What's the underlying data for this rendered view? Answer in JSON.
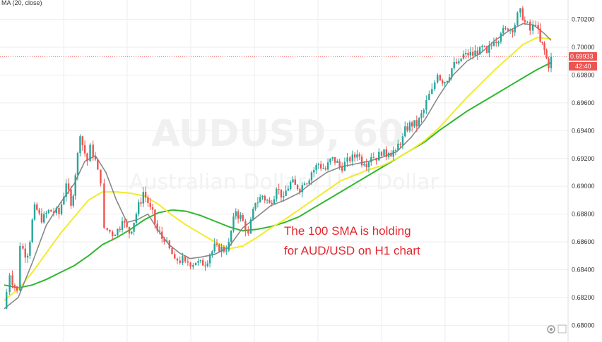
{
  "indicator_label": "MA (20, close)",
  "watermark": {
    "title": "AUDUSD, 60",
    "subtitle": "Australian Dollar / U.S. Dollar"
  },
  "annotation": {
    "line1": "The 100 SMA is holding",
    "line2": "for AUD/USD on H1 chart"
  },
  "price_badges": {
    "last_price": "0.69933",
    "countdown": "42:40"
  },
  "colors": {
    "up": "#26a69a",
    "down": "#ef5350",
    "ma20": "#888888",
    "ma50": "#f2eb2a",
    "ma100": "#2eb82e",
    "annotation": "#e3262d",
    "grid": "#eeeeee",
    "price_line": "#ef5350"
  },
  "chart_data": {
    "type": "candlestick",
    "y_ticks": [
      "0.70200",
      "0.70000",
      "0.69800",
      "0.69600",
      "0.69400",
      "0.69200",
      "0.69000",
      "0.68800",
      "0.68600",
      "0.68400",
      "0.68200",
      "0.68000"
    ],
    "ylim": [
      0.6788,
      0.7034
    ],
    "grid": true,
    "series": [
      {
        "name": "MA (20, close)",
        "type": "line",
        "points": [
          [
            0,
            0.6812
          ],
          [
            20,
            0.682
          ],
          [
            40,
            0.6845
          ],
          [
            60,
            0.6872
          ],
          [
            80,
            0.6888
          ],
          [
            100,
            0.6902
          ],
          [
            115,
            0.6918
          ],
          [
            130,
            0.6922
          ],
          [
            145,
            0.691
          ],
          [
            160,
            0.689
          ],
          [
            175,
            0.6874
          ],
          [
            190,
            0.6876
          ],
          [
            205,
            0.688
          ],
          [
            220,
            0.6868
          ],
          [
            235,
            0.6858
          ],
          [
            250,
            0.6852
          ],
          [
            265,
            0.6848
          ],
          [
            280,
            0.6849
          ],
          [
            300,
            0.6851
          ],
          [
            320,
            0.6856
          ],
          [
            340,
            0.687
          ],
          [
            360,
            0.6878
          ],
          [
            380,
            0.6886
          ],
          [
            400,
            0.689
          ],
          [
            420,
            0.6895
          ],
          [
            440,
            0.6903
          ],
          [
            460,
            0.691
          ],
          [
            480,
            0.6914
          ],
          [
            500,
            0.6916
          ],
          [
            520,
            0.6918
          ],
          [
            540,
            0.6921
          ],
          [
            560,
            0.6925
          ],
          [
            580,
            0.6935
          ],
          [
            600,
            0.6948
          ],
          [
            620,
            0.6965
          ],
          [
            640,
            0.698
          ],
          [
            660,
            0.699
          ],
          [
            680,
            0.6996
          ],
          [
            700,
            0.7005
          ],
          [
            720,
            0.7012
          ],
          [
            740,
            0.7017
          ],
          [
            755,
            0.7016
          ],
          [
            770,
            0.701
          ],
          [
            780,
            0.7005
          ]
        ]
      },
      {
        "name": "",
        "type": "line",
        "points": [
          [
            0,
            0.6818
          ],
          [
            20,
            0.6826
          ],
          [
            40,
            0.6838
          ],
          [
            60,
            0.6852
          ],
          [
            80,
            0.6866
          ],
          [
            100,
            0.6878
          ],
          [
            120,
            0.689
          ],
          [
            140,
            0.6896
          ],
          [
            160,
            0.6896
          ],
          [
            180,
            0.6895
          ],
          [
            200,
            0.6893
          ],
          [
            220,
            0.6887
          ],
          [
            240,
            0.6879
          ],
          [
            260,
            0.6872
          ],
          [
            280,
            0.6866
          ],
          [
            300,
            0.686
          ],
          [
            320,
            0.6855
          ],
          [
            340,
            0.6857
          ],
          [
            360,
            0.6863
          ],
          [
            380,
            0.687
          ],
          [
            400,
            0.6876
          ],
          [
            420,
            0.6883
          ],
          [
            440,
            0.689
          ],
          [
            460,
            0.6897
          ],
          [
            480,
            0.6904
          ],
          [
            500,
            0.6908
          ],
          [
            520,
            0.6912
          ],
          [
            540,
            0.6915
          ],
          [
            560,
            0.692
          ],
          [
            580,
            0.6926
          ],
          [
            600,
            0.6933
          ],
          [
            620,
            0.6942
          ],
          [
            640,
            0.6953
          ],
          [
            660,
            0.6964
          ],
          [
            680,
            0.6974
          ],
          [
            700,
            0.6984
          ],
          [
            720,
            0.6993
          ],
          [
            740,
            0.7002
          ],
          [
            760,
            0.7007
          ],
          [
            780,
            0.7006
          ]
        ]
      },
      {
        "name": "",
        "type": "line",
        "points": [
          [
            0,
            0.6829
          ],
          [
            20,
            0.6827
          ],
          [
            40,
            0.6829
          ],
          [
            60,
            0.6833
          ],
          [
            80,
            0.6838
          ],
          [
            100,
            0.6843
          ],
          [
            120,
            0.685
          ],
          [
            140,
            0.6858
          ],
          [
            160,
            0.6863
          ],
          [
            180,
            0.6869
          ],
          [
            200,
            0.6876
          ],
          [
            220,
            0.6881
          ],
          [
            240,
            0.6883
          ],
          [
            260,
            0.6882
          ],
          [
            280,
            0.6879
          ],
          [
            300,
            0.6875
          ],
          [
            320,
            0.6871
          ],
          [
            340,
            0.6868
          ],
          [
            360,
            0.6869
          ],
          [
            380,
            0.6871
          ],
          [
            400,
            0.6874
          ],
          [
            420,
            0.6878
          ],
          [
            440,
            0.6884
          ],
          [
            460,
            0.689
          ],
          [
            480,
            0.6896
          ],
          [
            500,
            0.6902
          ],
          [
            520,
            0.6908
          ],
          [
            540,
            0.6914
          ],
          [
            560,
            0.692
          ],
          [
            580,
            0.6926
          ],
          [
            600,
            0.6932
          ],
          [
            620,
            0.694
          ],
          [
            640,
            0.6947
          ],
          [
            660,
            0.6954
          ],
          [
            680,
            0.696
          ],
          [
            700,
            0.6966
          ],
          [
            720,
            0.6972
          ],
          [
            740,
            0.6978
          ],
          [
            760,
            0.6984
          ],
          [
            780,
            0.6989
          ]
        ]
      },
      {
        "name": "",
        "type": "candles",
        "segments": "1,0.6812,0.6836;10,0.6836,0.6825;20,0.6825,0.6857;25,0.6857,0.6850;35,0.6850,0.6887;45,0.6887,0.6874;55,0.6874,0.6883;65,0.6883,0.6880;80,0.6880,0.6902;90,0.6902,0.6886;97,0.6886,0.6908;103,0.6908,0.6936;110,0.6936,0.6918;120,0.6918,0.6930;125,0.6930,0.6912;135,0.6912,0.6902;140,0.6902,0.6870;145,0.6870,0.6865;160,0.6865,0.6875;170,0.6875,0.6866;180,0.6866,0.6880;190,0.6880,0.6896;200,0.6896,0.6885;210,0.6885,0.6868;220,0.6868,0.6860;230,0.6860,0.6848;245,0.6848,0.6846;260,0.6846,0.6845;275,0.6845,0.6843;285,0.6843,0.6851;295,0.6851,0.6858;305,0.6858,0.6853;315,0.6853,0.6860;322,0.6860,0.6882;332,0.6882,0.6875;342,0.6875,0.6866;350,0.6866,0.6888;360,0.6888,0.6893;370,0.6893,0.6888;380,0.6888,0.6898;390,0.6898,0.6893;400,0.6893,0.6903;410,0.6903,0.6898;420,0.6898,0.6902;430,0.6902,0.6910;440,0.6910,0.6916;450,0.6916,0.6912;460,0.6912,0.6921;470,0.6921,0.6914;480,0.6914,0.6918;495,0.6918,0.6923;505,0.6923,0.6916;515,0.6916,0.6921;525,0.6921,0.6922;540,0.6922,0.6924;550,0.6924,0.6926;560,0.6926,0.6936;570,0.6936,0.6946;580,0.6946,0.6943;590,0.6943,0.6955;600,0.6955,0.6970;612,0.6970,0.6980;620,0.6980,0.6975;630,0.6975,0.6985;640,0.6985,0.6990;650,0.6990,0.6996;660,0.6996,0.6994;670,0.6994,0.7000;680,0.7000,0.6996;690,0.6996,0.7004;700,0.7004,0.7010;710,0.7010,0.7012;720,0.7012,0.7016;730,0.7016,0.7028;738,0.7028,0.7018;744,0.7018,0.7012;752,0.7012,0.7016;760,0.7016,0.7004;766,0.7004,0.6998;772,0.6998,0.6985;778,0.6985,0.6993"
      }
    ]
  }
}
